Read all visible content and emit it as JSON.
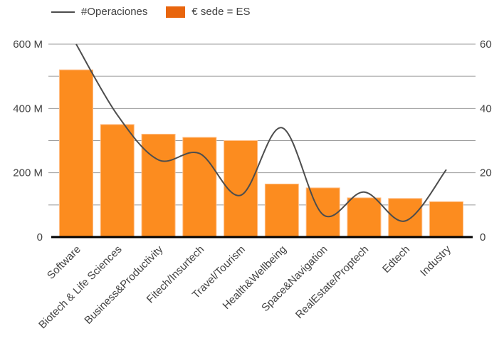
{
  "chart_data": {
    "type": "bar",
    "subtype": "combo-bar-line",
    "title": "",
    "categories": [
      "Software",
      "Biotech & Life Sciences",
      "Business&Productivity",
      "Fitech/Insurtech",
      "Travel/Tourism",
      "Health&Wellbeing",
      "Space&Navigation",
      "RealEstate/Proptech",
      "Edtech",
      "Industry"
    ],
    "series": [
      {
        "name": "€ sede = ES",
        "type": "bar",
        "axis": "left",
        "unit": "M",
        "values": [
          520,
          350,
          320,
          310,
          300,
          165,
          153,
          122,
          120,
          110
        ]
      },
      {
        "name": "#Operaciones",
        "type": "line",
        "axis": "right",
        "values": [
          60,
          38,
          24,
          26,
          13,
          34,
          7,
          14,
          5,
          21
        ]
      }
    ],
    "left_axis": {
      "label": "",
      "min": 0,
      "max": 600,
      "tick_values": [
        0,
        200,
        400,
        600
      ],
      "tick_labels": [
        "0",
        "200 M",
        "400 M",
        "600 M"
      ],
      "grid_step": 100
    },
    "right_axis": {
      "label": "",
      "min": 0,
      "max": 60,
      "tick_values": [
        0,
        20,
        40,
        60
      ],
      "tick_labels": [
        "0",
        "20",
        "40",
        "60"
      ],
      "grid_step": 10
    },
    "grid": "on",
    "legend_position": "top-left",
    "x_label_rotation": -45,
    "colors": {
      "bar_fill": "#fc8c1f",
      "bar_stroke": "#ffbd85",
      "legend_bar": "#e8650d",
      "line": "#4d4d4d",
      "grid": "#9b9b9b",
      "axis_text": "#424242",
      "baseline": "#000000"
    }
  }
}
